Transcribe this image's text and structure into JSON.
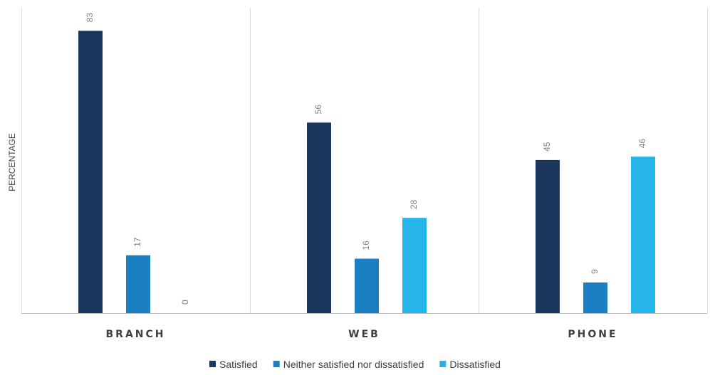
{
  "chart_data": {
    "type": "bar",
    "ylabel": "PERCENTAGE",
    "xlabel": "",
    "categories": [
      "BRANCH",
      "WEB",
      "PHONE"
    ],
    "series": [
      {
        "name": "Satisfied",
        "values": [
          83,
          56,
          45
        ],
        "color": "#1b365d"
      },
      {
        "name": "Neither satisfied nor dissatisfied",
        "values": [
          17,
          16,
          9
        ],
        "color": "#1b80c3"
      },
      {
        "name": "Dissatisfied",
        "values": [
          0,
          28,
          46
        ],
        "color": "#25b5e8"
      }
    ],
    "ylim": [
      0,
      90
    ],
    "grid": false,
    "legend_position": "bottom",
    "data_labels": true,
    "category_separators": true
  }
}
